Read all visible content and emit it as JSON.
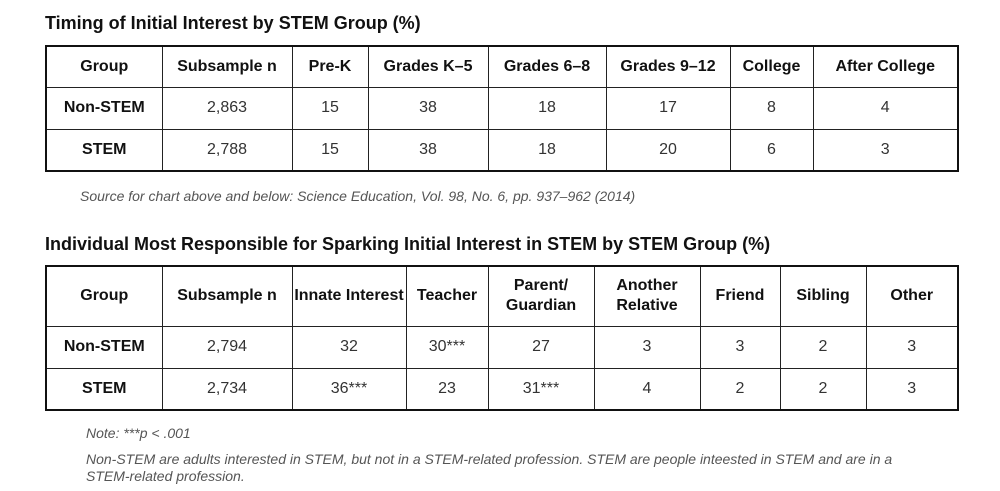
{
  "table1": {
    "title": "Timing of Initial Interest by STEM Group (%)",
    "headers": [
      "Group",
      "Subsample n",
      "Pre-K",
      "Grades K–5",
      "Grades 6–8",
      "Grades 9–12",
      "College",
      "After College"
    ],
    "rows": [
      [
        "Non-STEM",
        "2,863",
        "15",
        "38",
        "18",
        "17",
        "8",
        "4"
      ],
      [
        "STEM",
        "2,788",
        "15",
        "38",
        "18",
        "20",
        "6",
        "3"
      ]
    ]
  },
  "source": "Source for chart above and below: Science Education, Vol. 98, No. 6, pp. 937–962 (2014)",
  "table2": {
    "title": "Individual Most Responsible for Sparking Initial Interest in STEM by STEM Group (%)",
    "headers": [
      "Group",
      "Subsample n",
      "Innate Interest",
      "Teacher",
      "Parent/ Guardian",
      "Another Relative",
      "Friend",
      "Sibling",
      "Other"
    ],
    "rows": [
      [
        "Non-STEM",
        "2,794",
        "32",
        "30***",
        "27",
        "3",
        "3",
        "2",
        "3"
      ],
      [
        "STEM",
        "2,734",
        "36***",
        "23",
        "31***",
        "4",
        "2",
        "2",
        "3"
      ]
    ]
  },
  "notes": {
    "significance": "Note: ***p < .001",
    "definition": "Non-STEM are adults interested in STEM, but not in a STEM-related profession.  STEM are people inteested in STEM and are in a STEM-related profession."
  }
}
